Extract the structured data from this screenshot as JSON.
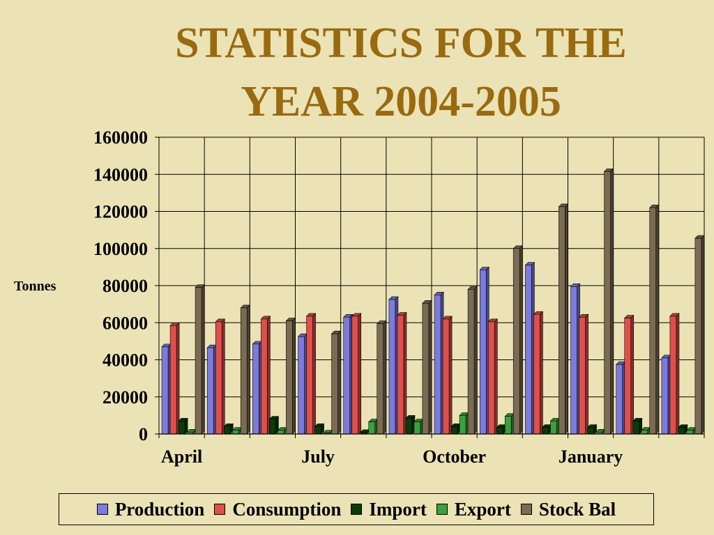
{
  "title_line1": "STATISTICS FOR THE",
  "title_line2": "YEAR 2004-2005",
  "chart_data": {
    "type": "bar",
    "title": "STATISTICS FOR THE YEAR 2004-2005",
    "ylabel": "Tonnes",
    "xlabel": "",
    "ylim": [
      0,
      160000
    ],
    "yticks": [
      0,
      20000,
      40000,
      60000,
      80000,
      100000,
      120000,
      140000,
      160000
    ],
    "ytick_labels": [
      "0",
      "20000",
      "40000",
      "60000",
      "80000",
      "100000",
      "120000",
      "140000",
      "160000"
    ],
    "categories": [
      "April",
      "",
      "",
      "July",
      "",
      "",
      "October",
      "",
      "",
      "January",
      "",
      ""
    ],
    "grid": true,
    "legend_position": "bottom",
    "series": [
      {
        "name": "Production",
        "color": "#7b7bdf",
        "values": [
          47000,
          46500,
          48500,
          52500,
          63000,
          72500,
          75000,
          88500,
          91000,
          79500,
          37500,
          41000
        ]
      },
      {
        "name": "Consumption",
        "color": "#df4f4b",
        "values": [
          58500,
          60500,
          62000,
          63500,
          63500,
          64000,
          62000,
          60500,
          64500,
          63000,
          62500,
          63500
        ]
      },
      {
        "name": "Import",
        "color": "#0b3b0b",
        "values": [
          7000,
          4000,
          8000,
          4000,
          800,
          8500,
          4000,
          3500,
          3500,
          3500,
          7000,
          3500
        ]
      },
      {
        "name": "Export",
        "color": "#3ca03c",
        "values": [
          1000,
          2000,
          2000,
          500,
          6500,
          6500,
          10000,
          9500,
          7000,
          1000,
          2000,
          2000
        ]
      },
      {
        "name": "Stock Bal",
        "color": "#7b6b53",
        "values": [
          79000,
          68000,
          61000,
          54000,
          59500,
          70500,
          78000,
          100000,
          122500,
          141500,
          122000,
          105500
        ]
      }
    ]
  }
}
